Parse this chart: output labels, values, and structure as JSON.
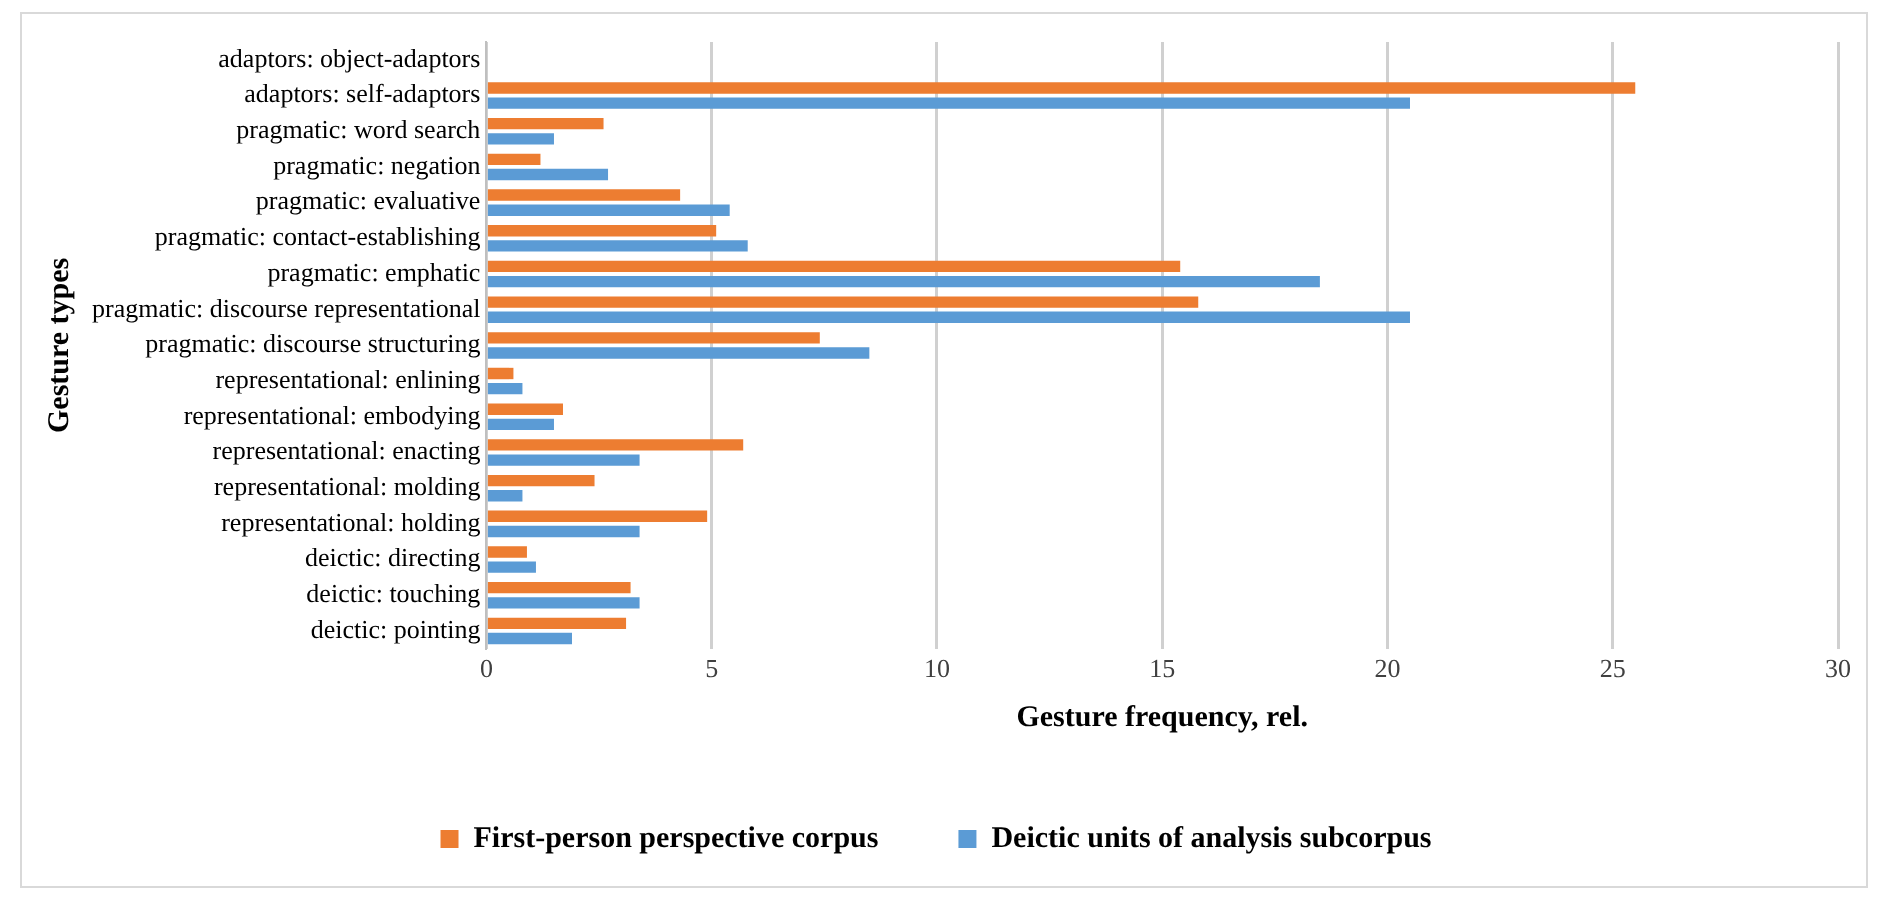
{
  "chart_data": {
    "type": "bar",
    "orientation": "horizontal",
    "xlabel": "Gesture frequency, rel.",
    "ylabel": "Gesture types",
    "categories": [
      "adaptors: object-adaptors",
      "adaptors: self-adaptors",
      "pragmatic: word search",
      "pragmatic: negation",
      "pragmatic: evaluative",
      "pragmatic: contact-establishing",
      "pragmatic: emphatic",
      "pragmatic: discourse representational",
      "pragmatic: discourse structuring",
      "representational: enlining",
      "representational: embodying",
      "representational: enacting",
      "representational: molding",
      "representational: holding",
      "deictic: directing",
      "deictic: touching",
      "deictic: pointing"
    ],
    "series": [
      {
        "name": "First-person perspective corpus",
        "color": "#ed7d31",
        "values": [
          0,
          25.5,
          2.6,
          1.2,
          4.3,
          5.1,
          15.4,
          15.8,
          7.4,
          0.6,
          1.7,
          5.7,
          2.4,
          4.9,
          0.9,
          3.2,
          3.1
        ]
      },
      {
        "name": "Deictic units of analysis subcorpus",
        "color": "#5b9bd5",
        "values": [
          0,
          20.5,
          1.5,
          2.7,
          5.4,
          5.8,
          18.5,
          20.5,
          8.5,
          0.8,
          1.5,
          3.4,
          0.8,
          3.4,
          1.1,
          3.4,
          1.9
        ]
      }
    ],
    "xlim": [
      0,
      30
    ],
    "xticks": [
      0,
      5,
      10,
      15,
      20,
      25,
      30
    ],
    "grid": "x",
    "legend": "bottom"
  }
}
